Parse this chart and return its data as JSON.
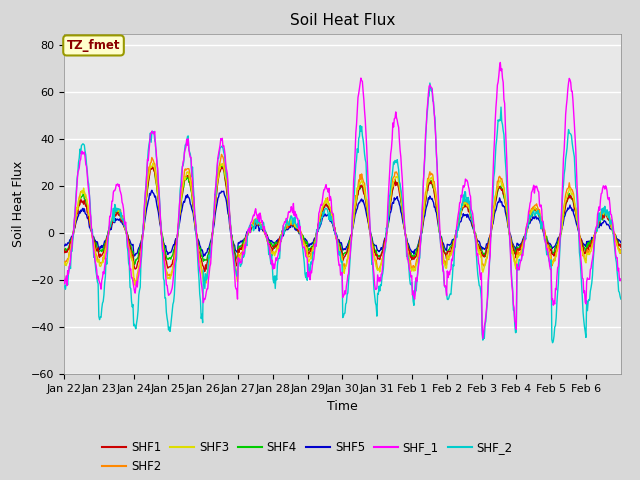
{
  "title": "Soil Heat Flux",
  "xlabel": "Time",
  "ylabel": "Soil Heat Flux",
  "ylim": [
    -60,
    85
  ],
  "yticks": [
    -60,
    -40,
    -20,
    0,
    20,
    40,
    60,
    80
  ],
  "x_tick_labels": [
    "Jan 22",
    "Jan 23",
    "Jan 24",
    "Jan 25",
    "Jan 26",
    "Jan 27",
    "Jan 28",
    "Jan 29",
    "Jan 30",
    "Jan 31",
    "Feb 1",
    "Feb 2",
    "Feb 3",
    "Feb 4",
    "Feb 5",
    "Feb 6"
  ],
  "n_days": 16,
  "annotation_text": "TZ_fmet",
  "annotation_color": "#8B0000",
  "annotation_bg": "#FFFFCC",
  "annotation_border": "#999900",
  "fig_bg": "#D8D8D8",
  "plot_bg": "#E8E8E8",
  "series_colors": {
    "SHF1": "#CC0000",
    "SHF2": "#FF8800",
    "SHF3": "#DDDD00",
    "SHF4": "#00CC00",
    "SHF5": "#0000CC",
    "SHF_1": "#FF00FF",
    "SHF_2": "#00CCCC"
  },
  "peak_scales_shf1": [
    14,
    8,
    28,
    25,
    28,
    4,
    4,
    12,
    20,
    22,
    22,
    12,
    20,
    10,
    16,
    8
  ],
  "peak_scales_shf2": [
    18,
    10,
    32,
    28,
    32,
    5,
    5,
    14,
    24,
    26,
    26,
    14,
    24,
    12,
    20,
    10
  ],
  "peak_scales_shf3": [
    18,
    10,
    30,
    26,
    30,
    5,
    5,
    14,
    22,
    24,
    24,
    13,
    22,
    11,
    18,
    9
  ],
  "peak_scales_shf4": [
    16,
    9,
    28,
    24,
    28,
    4,
    4,
    12,
    20,
    22,
    22,
    12,
    20,
    10,
    16,
    8
  ],
  "peak_scales_shf5": [
    10,
    6,
    18,
    16,
    18,
    3,
    3,
    8,
    14,
    15,
    15,
    8,
    14,
    7,
    11,
    5
  ],
  "peak_scales_shf_1": [
    35,
    21,
    43,
    38,
    40,
    8,
    11,
    20,
    65,
    50,
    63,
    22,
    71,
    20,
    65,
    20
  ],
  "peak_scales_shf_2": [
    38,
    10,
    43,
    40,
    38,
    5,
    6,
    10,
    43,
    30,
    63,
    15,
    50,
    10,
    42,
    10
  ],
  "trough_neg_shf1": [
    -8,
    -10,
    -15,
    -14,
    -15,
    -7,
    -6,
    -8,
    -10,
    -11,
    -11,
    -8,
    -10,
    -7,
    -9,
    -6
  ],
  "trough_neg_shf2": [
    -12,
    -13,
    -20,
    -18,
    -20,
    -9,
    -8,
    -10,
    -14,
    -15,
    -15,
    -10,
    -14,
    -9,
    -12,
    -8
  ],
  "trough_neg_shf3": [
    -13,
    -14,
    -21,
    -19,
    -21,
    -10,
    -8,
    -11,
    -15,
    -16,
    -16,
    -11,
    -15,
    -10,
    -13,
    -9
  ],
  "trough_neg_shf4": [
    -7,
    -8,
    -12,
    -11,
    -12,
    -6,
    -5,
    -7,
    -9,
    -10,
    -10,
    -7,
    -9,
    -6,
    -8,
    -5
  ],
  "trough_neg_shf5": [
    -5,
    -6,
    -9,
    -8,
    -9,
    -4,
    -4,
    -5,
    -7,
    -8,
    -8,
    -5,
    -7,
    -5,
    -6,
    -4
  ],
  "trough_neg_shf_1": [
    -20,
    -22,
    -25,
    -26,
    -28,
    -12,
    -12,
    -18,
    -26,
    -20,
    -26,
    -18,
    -42,
    -15,
    -30,
    -20
  ],
  "trough_neg_shf_2": [
    -22,
    -35,
    -40,
    -40,
    -20,
    -14,
    -20,
    -14,
    -35,
    -24,
    -26,
    -28,
    -44,
    -14,
    -46,
    -30
  ]
}
